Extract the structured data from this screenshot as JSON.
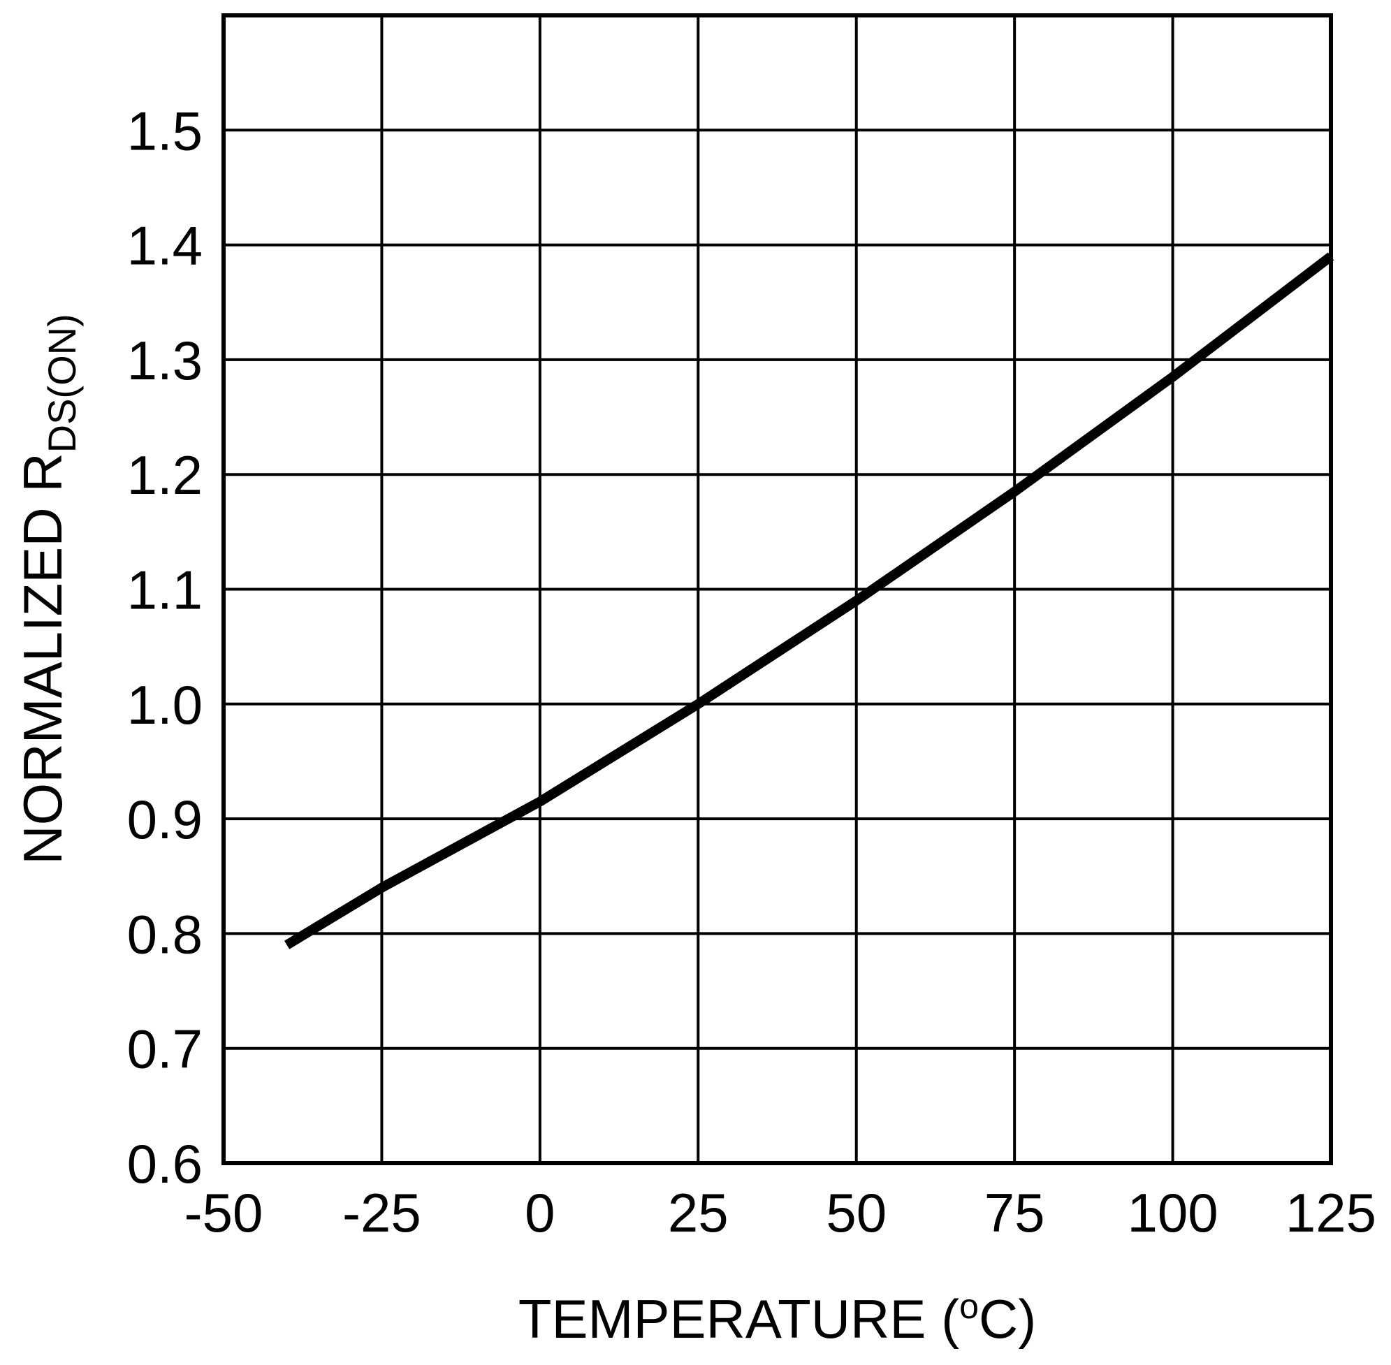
{
  "chart_data": {
    "type": "line",
    "title": "",
    "xlabel": {
      "prefix": "TEMPERATURE (",
      "superscript": "o",
      "suffix": "C)"
    },
    "ylabel": {
      "main": "NORMALIZED R",
      "subscript": "DS(ON)"
    },
    "xlim": [
      -50,
      125
    ],
    "ylim": [
      0.6,
      1.6
    ],
    "xticks": [
      -50,
      -25,
      0,
      25,
      50,
      75,
      100,
      125
    ],
    "xtick_labels": [
      "-50",
      "-25",
      "0",
      "25",
      "50",
      "75",
      "100",
      "125"
    ],
    "yticks": [
      0.6,
      0.7,
      0.8,
      0.9,
      1.0,
      1.1,
      1.2,
      1.3,
      1.4,
      1.5
    ],
    "ytick_labels": [
      "0.6",
      "0.7",
      "0.8",
      "0.9",
      "1.0",
      "1.1",
      "1.2",
      "1.3",
      "1.4",
      "1.5"
    ],
    "grid": true,
    "line_color": "#000000",
    "series": [
      {
        "x": [
          -40,
          -25,
          0,
          25,
          50,
          75,
          100,
          125
        ],
        "y": [
          0.79,
          0.84,
          0.915,
          1.0,
          1.09,
          1.185,
          1.285,
          1.39
        ]
      }
    ]
  }
}
